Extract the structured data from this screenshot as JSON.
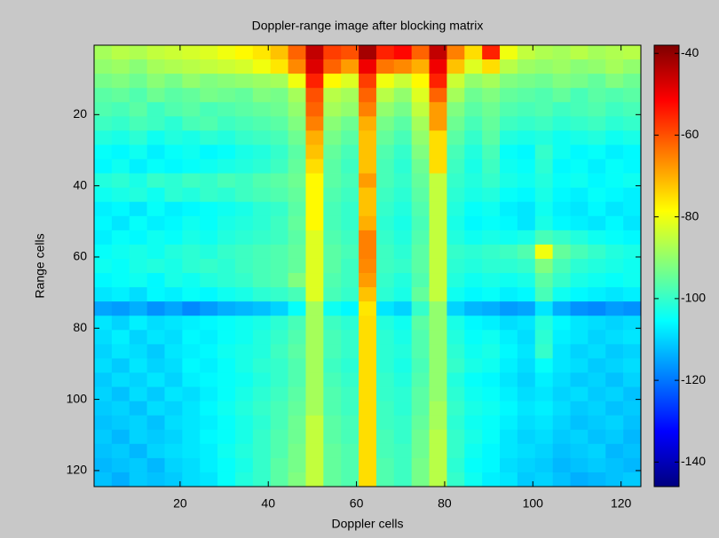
{
  "chart_data": {
    "type": "heatmap",
    "title": "Doppler-range image after blocking matrix",
    "x_label": "Doppler cells",
    "y_label": "Range cells",
    "colormap": "jet",
    "y_reversed": true,
    "xlim": [
      0.5,
      124.5
    ],
    "ylim": [
      0.5,
      124.5
    ],
    "clim": [
      -146,
      -38
    ],
    "xticks": [
      20,
      40,
      60,
      80,
      100,
      120
    ],
    "yticks": [
      20,
      40,
      60,
      80,
      100,
      120
    ],
    "cticks": [
      -40,
      -60,
      -80,
      -100,
      -120,
      -140
    ],
    "x": [
      2.5,
      6.5,
      10.5,
      14.5,
      18.5,
      22.5,
      26.5,
      30.5,
      34.5,
      38.5,
      42.5,
      46.5,
      50.5,
      54.5,
      58.5,
      62.5,
      66.5,
      70.5,
      74.5,
      78.5,
      82.5,
      86.5,
      90.5,
      94.5,
      98.5,
      102.5,
      106.5,
      110.5,
      114.5,
      118.5,
      122.5
    ],
    "y": [
      2.5,
      6.5,
      10.5,
      14.5,
      18.5,
      22.5,
      26.5,
      30.5,
      34.5,
      38.5,
      42.5,
      46.5,
      50.5,
      54.5,
      58.5,
      62.5,
      66.5,
      70.5,
      74.5,
      78.5,
      82.5,
      86.5,
      90.5,
      94.5,
      98.5,
      102.5,
      106.5,
      110.5,
      114.5,
      118.5,
      122.5
    ],
    "z": [
      [
        -88,
        -86,
        -87,
        -85,
        -84,
        -83,
        -82,
        -80,
        -78,
        -76,
        -72,
        -62,
        -45,
        -58,
        -60,
        -42,
        -55,
        -52,
        -62,
        -45,
        -65,
        -75,
        -55,
        -80,
        -85,
        -87,
        -88,
        -86,
        -88,
        -87,
        -86
      ],
      [
        -90,
        -89,
        -91,
        -88,
        -87,
        -86,
        -85,
        -84,
        -83,
        -80,
        -76,
        -66,
        -48,
        -62,
        -68,
        -50,
        -64,
        -66,
        -70,
        -50,
        -72,
        -82,
        -75,
        -86,
        -89,
        -90,
        -89,
        -91,
        -90,
        -88,
        -90
      ],
      [
        -93,
        -92,
        -94,
        -91,
        -93,
        -90,
        -92,
        -91,
        -90,
        -89,
        -88,
        -80,
        -55,
        -78,
        -82,
        -58,
        -80,
        -84,
        -78,
        -55,
        -84,
        -90,
        -88,
        -92,
        -93,
        -94,
        -92,
        -93,
        -95,
        -92,
        -94
      ],
      [
        -96,
        -95,
        -97,
        -94,
        -96,
        -95,
        -93,
        -94,
        -95,
        -92,
        -93,
        -88,
        -60,
        -86,
        -88,
        -62,
        -86,
        -90,
        -82,
        -62,
        -88,
        -94,
        -92,
        -95,
        -96,
        -97,
        -95,
        -98,
        -96,
        -97,
        -96
      ],
      [
        -97,
        -98,
        -96,
        -99,
        -97,
        -96,
        -98,
        -97,
        -96,
        -95,
        -94,
        -90,
        -62,
        -88,
        -90,
        -65,
        -90,
        -93,
        -85,
        -68,
        -92,
        -96,
        -94,
        -97,
        -98,
        -97,
        -99,
        -98,
        -97,
        -99,
        -98
      ],
      [
        -99,
        -100,
        -98,
        -99,
        -101,
        -98,
        -97,
        -99,
        -98,
        -97,
        -96,
        -92,
        -65,
        -91,
        -94,
        -70,
        -93,
        -96,
        -88,
        -68,
        -94,
        -98,
        -95,
        -99,
        -100,
        -99,
        -101,
        -100,
        -99,
        -101,
        -100
      ],
      [
        -102,
        -103,
        -101,
        -104,
        -102,
        -103,
        -101,
        -102,
        -100,
        -99,
        -98,
        -94,
        -70,
        -93,
        -96,
        -72,
        -95,
        -98,
        -90,
        -75,
        -96,
        -100,
        -96,
        -102,
        -103,
        -102,
        -104,
        -103,
        -102,
        -104,
        -103
      ],
      [
        -105,
        -106,
        -104,
        -107,
        -105,
        -104,
        -106,
        -105,
        -103,
        -102,
        -100,
        -96,
        -72,
        -95,
        -98,
        -72,
        -97,
        -100,
        -92,
        -75,
        -98,
        -102,
        -98,
        -105,
        -106,
        -100,
        -104,
        -106,
        -105,
        -107,
        -106
      ],
      [
        -106,
        -104,
        -107,
        -105,
        -106,
        -105,
        -104,
        -103,
        -102,
        -101,
        -99,
        -95,
        -75,
        -96,
        -99,
        -72,
        -98,
        -101,
        -94,
        -75,
        -99,
        -103,
        -99,
        -104,
        -105,
        -101,
        -106,
        -105,
        -107,
        -105,
        -106
      ],
      [
        -102,
        -101,
        -103,
        -100,
        -101,
        -99,
        -100,
        -98,
        -99,
        -97,
        -96,
        -94,
        -78,
        -96,
        -98,
        -68,
        -98,
        -100,
        -95,
        -85,
        -100,
        -102,
        -100,
        -103,
        -104,
        -102,
        -105,
        -104,
        -106,
        -105,
        -104
      ],
      [
        -104,
        -103,
        -102,
        -104,
        -101,
        -102,
        -100,
        -101,
        -99,
        -98,
        -97,
        -95,
        -78,
        -97,
        -99,
        -72,
        -99,
        -101,
        -96,
        -85,
        -101,
        -103,
        -102,
        -105,
        -106,
        -103,
        -106,
        -107,
        -105,
        -106,
        -107
      ],
      [
        -107,
        -106,
        -108,
        -105,
        -107,
        -106,
        -105,
        -104,
        -103,
        -101,
        -100,
        -96,
        -78,
        -98,
        -100,
        -72,
        -100,
        -102,
        -97,
        -85,
        -102,
        -105,
        -104,
        -107,
        -108,
        -104,
        -107,
        -108,
        -106,
        -108,
        -107
      ],
      [
        -106,
        -108,
        -105,
        -107,
        -106,
        -104,
        -105,
        -103,
        -102,
        -101,
        -99,
        -95,
        -78,
        -98,
        -100,
        -70,
        -101,
        -103,
        -98,
        -85,
        -103,
        -106,
        -105,
        -106,
        -108,
        -103,
        -106,
        -107,
        -108,
        -106,
        -108
      ],
      [
        -107,
        -105,
        -106,
        -104,
        -105,
        -103,
        -104,
        -102,
        -101,
        -100,
        -99,
        -96,
        -82,
        -97,
        -99,
        -65,
        -100,
        -102,
        -97,
        -85,
        -102,
        -104,
        -103,
        -104,
        -103,
        -98,
        -100,
        -102,
        -104,
        -105,
        -106
      ],
      [
        -105,
        -104,
        -103,
        -104,
        -102,
        -101,
        -102,
        -100,
        -99,
        -98,
        -97,
        -95,
        -82,
        -96,
        -98,
        -65,
        -99,
        -101,
        -96,
        -85,
        -100,
        -101,
        -100,
        -99,
        -97,
        -80,
        -95,
        -98,
        -100,
        -102,
        -103
      ],
      [
        -104,
        -105,
        -103,
        -102,
        -103,
        -101,
        -100,
        -101,
        -99,
        -98,
        -97,
        -95,
        -82,
        -96,
        -99,
        -66,
        -99,
        -100,
        -96,
        -85,
        -101,
        -102,
        -101,
        -101,
        -100,
        -92,
        -98,
        -101,
        -102,
        -103,
        -104
      ],
      [
        -106,
        -105,
        -104,
        -106,
        -103,
        -104,
        -102,
        -101,
        -100,
        -98,
        -97,
        -92,
        -82,
        -97,
        -99,
        -68,
        -100,
        -102,
        -97,
        -85,
        -102,
        -104,
        -103,
        -104,
        -103,
        -96,
        -100,
        -103,
        -104,
        -105,
        -104
      ],
      [
        -108,
        -107,
        -109,
        -106,
        -107,
        -105,
        -106,
        -104,
        -103,
        -101,
        -100,
        -98,
        -82,
        -98,
        -100,
        -72,
        -101,
        -103,
        -95,
        -85,
        -104,
        -106,
        -105,
        -107,
        -106,
        -98,
        -104,
        -106,
        -107,
        -108,
        -107
      ],
      [
        -115,
        -116,
        -114,
        -117,
        -115,
        -118,
        -116,
        -114,
        -113,
        -112,
        -110,
        -105,
        -88,
        -104,
        -106,
        -76,
        -108,
        -110,
        -100,
        -90,
        -110,
        -113,
        -114,
        -116,
        -115,
        -108,
        -114,
        -117,
        -118,
        -116,
        -117
      ],
      [
        -108,
        -110,
        -107,
        -109,
        -108,
        -107,
        -106,
        -105,
        -104,
        -103,
        -101,
        -98,
        -88,
        -99,
        -101,
        -75,
        -102,
        -104,
        -96,
        -90,
        -103,
        -106,
        -107,
        -109,
        -108,
        -102,
        -106,
        -108,
        -109,
        -110,
        -109
      ],
      [
        -109,
        -107,
        -110,
        -108,
        -109,
        -106,
        -107,
        -105,
        -104,
        -102,
        -100,
        -97,
        -88,
        -98,
        -100,
        -75,
        -101,
        -103,
        -97,
        -90,
        -102,
        -105,
        -104,
        -107,
        -109,
        -101,
        -107,
        -108,
        -110,
        -109,
        -108
      ],
      [
        -110,
        -108,
        -109,
        -111,
        -108,
        -107,
        -106,
        -104,
        -103,
        -102,
        -99,
        -96,
        -88,
        -98,
        -100,
        -75,
        -101,
        -102,
        -97,
        -90,
        -101,
        -104,
        -103,
        -106,
        -108,
        -100,
        -108,
        -110,
        -109,
        -111,
        -110
      ],
      [
        -109,
        -111,
        -108,
        -110,
        -109,
        -106,
        -107,
        -105,
        -103,
        -101,
        -100,
        -97,
        -88,
        -99,
        -101,
        -75,
        -101,
        -103,
        -98,
        -90,
        -100,
        -103,
        -104,
        -107,
        -109,
        -105,
        -108,
        -109,
        -111,
        -110,
        -109
      ],
      [
        -111,
        -109,
        -110,
        -108,
        -110,
        -107,
        -106,
        -105,
        -104,
        -102,
        -100,
        -97,
        -88,
        -98,
        -100,
        -75,
        -100,
        -102,
        -97,
        -90,
        -102,
        -105,
        -106,
        -108,
        -110,
        -107,
        -109,
        -111,
        -110,
        -112,
        -110
      ],
      [
        -110,
        -112,
        -109,
        -111,
        -108,
        -109,
        -107,
        -105,
        -103,
        -101,
        -99,
        -96,
        -88,
        -97,
        -99,
        -75,
        -100,
        -101,
        -96,
        -90,
        -101,
        -104,
        -105,
        -107,
        -109,
        -108,
        -110,
        -109,
        -111,
        -110,
        -112
      ],
      [
        -111,
        -110,
        -112,
        -109,
        -110,
        -108,
        -106,
        -104,
        -102,
        -100,
        -98,
        -95,
        -88,
        -97,
        -99,
        -75,
        -99,
        -101,
        -96,
        -88,
        -100,
        -103,
        -104,
        -106,
        -108,
        -107,
        -109,
        -111,
        -110,
        -112,
        -111
      ],
      [
        -112,
        -111,
        -110,
        -112,
        -109,
        -108,
        -107,
        -105,
        -103,
        -101,
        -98,
        -94,
        -85,
        -96,
        -98,
        -75,
        -99,
        -100,
        -95,
        -88,
        -101,
        -104,
        -105,
        -107,
        -109,
        -108,
        -110,
        -112,
        -111,
        -110,
        -112
      ],
      [
        -111,
        -113,
        -110,
        -111,
        -110,
        -108,
        -106,
        -105,
        -103,
        -100,
        -97,
        -94,
        -85,
        -96,
        -98,
        -75,
        -98,
        -100,
        -94,
        -86,
        -100,
        -103,
        -105,
        -108,
        -110,
        -109,
        -111,
        -110,
        -112,
        -111,
        -113
      ],
      [
        -112,
        -111,
        -113,
        -110,
        -109,
        -108,
        -107,
        -104,
        -102,
        -100,
        -97,
        -93,
        -85,
        -95,
        -97,
        -75,
        -98,
        -99,
        -94,
        -86,
        -100,
        -104,
        -106,
        -108,
        -109,
        -110,
        -112,
        -111,
        -110,
        -113,
        -112
      ],
      [
        -113,
        -112,
        -111,
        -113,
        -110,
        -109,
        -107,
        -105,
        -103,
        -100,
        -96,
        -93,
        -85,
        -95,
        -97,
        -75,
        -97,
        -99,
        -93,
        -86,
        -101,
        -105,
        -106,
        -109,
        -110,
        -111,
        -113,
        -112,
        -111,
        -112,
        -113
      ],
      [
        -112,
        -114,
        -111,
        -112,
        -111,
        -109,
        -108,
        -105,
        -102,
        -100,
        -96,
        -92,
        -85,
        -95,
        -97,
        -75,
        -97,
        -99,
        -93,
        -86,
        -100,
        -104,
        -107,
        -108,
        -111,
        -110,
        -112,
        -114,
        -113,
        -112,
        -111
      ]
    ]
  }
}
